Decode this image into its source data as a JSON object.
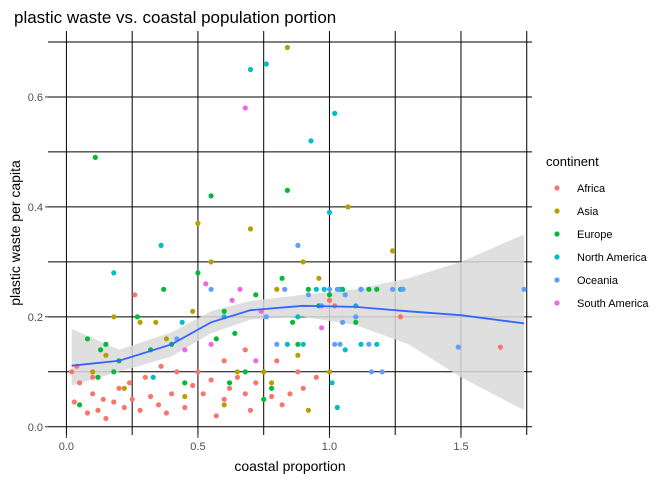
{
  "chart_data": {
    "type": "scatter",
    "title": "plastic waste vs. coastal population portion",
    "xlabel": "coastal proportion",
    "ylabel": "plastic waste per capita",
    "xlim": [
      -0.07,
      1.77
    ],
    "ylim": [
      -0.015,
      0.72
    ],
    "x_ticks": [
      0.0,
      0.5,
      1.0,
      1.5
    ],
    "x_tick_labels": [
      "0.0",
      "0.5",
      "1.0",
      "1.5"
    ],
    "y_ticks": [
      0.0,
      0.2,
      0.4,
      0.6
    ],
    "y_tick_labels": [
      "0.0",
      "0.2",
      "0.4",
      "0.6"
    ],
    "grid": true,
    "legend": {
      "title": "continent",
      "position": "right",
      "items": [
        {
          "label": "Africa",
          "color": "#F8766D"
        },
        {
          "label": "Asia",
          "color": "#B79F00"
        },
        {
          "label": "Europe",
          "color": "#00BA38"
        },
        {
          "label": "North America",
          "color": "#00BFC4"
        },
        {
          "label": "Oceania",
          "color": "#619CFF"
        },
        {
          "label": "South America",
          "color": "#F564E3"
        }
      ]
    },
    "smooth": {
      "color": "#3366FF",
      "band_color": "#D9D9D9",
      "x": [
        0.02,
        0.2,
        0.4,
        0.55,
        0.7,
        0.9,
        1.1,
        1.3,
        1.5,
        1.74
      ],
      "y": [
        0.111,
        0.12,
        0.15,
        0.19,
        0.212,
        0.22,
        0.218,
        0.21,
        0.203,
        0.188
      ],
      "lower": [
        0.075,
        0.1,
        0.128,
        0.17,
        0.195,
        0.2,
        0.185,
        0.15,
        0.09,
        0.03
      ],
      "upper": [
        0.178,
        0.14,
        0.172,
        0.21,
        0.229,
        0.24,
        0.25,
        0.27,
        0.3,
        0.35
      ]
    },
    "series": [
      {
        "name": "Africa",
        "color": "#F8766D",
        "points": [
          [
            0.02,
            0.1
          ],
          [
            0.03,
            0.045
          ],
          [
            0.05,
            0.08
          ],
          [
            0.08,
            0.025
          ],
          [
            0.1,
            0.06
          ],
          [
            0.12,
            0.03
          ],
          [
            0.15,
            0.015
          ],
          [
            0.18,
            0.045
          ],
          [
            0.2,
            0.07
          ],
          [
            0.22,
            0.035
          ],
          [
            0.25,
            0.05
          ],
          [
            0.28,
            0.03
          ],
          [
            0.3,
            0.09
          ],
          [
            0.32,
            0.055
          ],
          [
            0.35,
            0.04
          ],
          [
            0.38,
            0.025
          ],
          [
            0.4,
            0.06
          ],
          [
            0.42,
            0.1
          ],
          [
            0.45,
            0.035
          ],
          [
            0.48,
            0.075
          ],
          [
            0.5,
            0.1
          ],
          [
            0.52,
            0.06
          ],
          [
            0.55,
            0.085
          ],
          [
            0.57,
            0.02
          ],
          [
            0.6,
            0.05
          ],
          [
            0.62,
            0.07
          ],
          [
            0.65,
            0.09
          ],
          [
            0.68,
            0.06
          ],
          [
            0.7,
            0.03
          ],
          [
            0.72,
            0.08
          ],
          [
            0.75,
            0.1
          ],
          [
            0.78,
            0.055
          ],
          [
            0.8,
            0.12
          ],
          [
            0.82,
            0.04
          ],
          [
            0.85,
            0.06
          ],
          [
            0.88,
            0.1
          ],
          [
            0.9,
            0.07
          ],
          [
            0.95,
            0.09
          ],
          [
            1.0,
            0.23
          ],
          [
            1.02,
            0.22
          ],
          [
            0.26,
            0.24
          ],
          [
            1.27,
            0.2
          ],
          [
            1.65,
            0.145
          ],
          [
            0.04,
            0.11
          ],
          [
            0.1,
            0.09
          ],
          [
            0.14,
            0.05
          ],
          [
            0.24,
            0.08
          ],
          [
            0.36,
            0.11
          ],
          [
            0.6,
            0.12
          ],
          [
            0.68,
            0.14
          ]
        ]
      },
      {
        "name": "Asia",
        "color": "#B79F00",
        "points": [
          [
            0.1,
            0.1
          ],
          [
            0.15,
            0.13
          ],
          [
            0.18,
            0.2
          ],
          [
            0.22,
            0.07
          ],
          [
            0.28,
            0.19
          ],
          [
            0.38,
            0.16
          ],
          [
            0.45,
            0.055
          ],
          [
            0.48,
            0.21
          ],
          [
            0.5,
            0.37
          ],
          [
            0.55,
            0.3
          ],
          [
            0.6,
            0.04
          ],
          [
            0.65,
            0.1
          ],
          [
            0.7,
            0.36
          ],
          [
            0.75,
            0.1
          ],
          [
            0.8,
            0.25
          ],
          [
            0.84,
            0.69
          ],
          [
            0.88,
            0.13
          ],
          [
            0.9,
            0.3
          ],
          [
            0.92,
            0.03
          ],
          [
            0.96,
            0.27
          ],
          [
            1.0,
            0.1
          ],
          [
            1.07,
            0.4
          ],
          [
            1.24,
            0.32
          ],
          [
            0.34,
            0.19
          ],
          [
            0.78,
            0.08
          ]
        ]
      },
      {
        "name": "Europe",
        "color": "#00BA38",
        "points": [
          [
            0.05,
            0.04
          ],
          [
            0.08,
            0.16
          ],
          [
            0.11,
            0.49
          ],
          [
            0.13,
            0.14
          ],
          [
            0.15,
            0.15
          ],
          [
            0.18,
            0.1
          ],
          [
            0.2,
            0.12
          ],
          [
            0.27,
            0.2
          ],
          [
            0.37,
            0.25
          ],
          [
            0.4,
            0.15
          ],
          [
            0.45,
            0.08
          ],
          [
            0.5,
            0.28
          ],
          [
            0.55,
            0.42
          ],
          [
            0.57,
            0.16
          ],
          [
            0.6,
            0.21
          ],
          [
            0.64,
            0.17
          ],
          [
            0.68,
            0.1
          ],
          [
            0.72,
            0.24
          ],
          [
            0.75,
            0.05
          ],
          [
            0.78,
            0.07
          ],
          [
            0.82,
            0.27
          ],
          [
            0.84,
            0.43
          ],
          [
            0.88,
            0.15
          ],
          [
            0.92,
            0.25
          ],
          [
            0.96,
            0.22
          ],
          [
            1.0,
            0.24
          ],
          [
            1.05,
            0.25
          ],
          [
            1.1,
            0.19
          ],
          [
            1.15,
            0.25
          ],
          [
            1.18,
            0.25
          ],
          [
            0.12,
            0.09
          ],
          [
            0.32,
            0.14
          ],
          [
            0.62,
            0.08
          ],
          [
            0.86,
            0.19
          ],
          [
            1.12,
            0.25
          ]
        ]
      },
      {
        "name": "North America",
        "color": "#00BFC4",
        "points": [
          [
            0.18,
            0.28
          ],
          [
            0.33,
            0.09
          ],
          [
            0.36,
            0.33
          ],
          [
            0.44,
            0.19
          ],
          [
            0.6,
            0.2
          ],
          [
            0.7,
            0.65
          ],
          [
            0.76,
            0.66
          ],
          [
            0.84,
            0.15
          ],
          [
            0.88,
            0.2
          ],
          [
            0.93,
            0.52
          ],
          [
            0.95,
            0.25
          ],
          [
            1.0,
            0.39
          ],
          [
            1.02,
            0.57
          ],
          [
            1.03,
            0.035
          ],
          [
            1.04,
            0.25
          ],
          [
            1.06,
            0.14
          ],
          [
            1.1,
            0.22
          ],
          [
            1.18,
            0.15
          ],
          [
            0.9,
            0.15
          ],
          [
            1.27,
            0.25
          ],
          [
            1.12,
            0.15
          ],
          [
            0.98,
            0.25
          ],
          [
            1.01,
            0.08
          ]
        ]
      },
      {
        "name": "Oceania",
        "color": "#619CFF",
        "points": [
          [
            0.42,
            0.16
          ],
          [
            0.55,
            0.25
          ],
          [
            0.76,
            0.2
          ],
          [
            0.83,
            0.25
          ],
          [
            0.88,
            0.33
          ],
          [
            0.92,
            0.24
          ],
          [
            0.97,
            0.22
          ],
          [
            1.0,
            0.25
          ],
          [
            1.03,
            0.25
          ],
          [
            1.05,
            0.19
          ],
          [
            1.06,
            0.24
          ],
          [
            1.1,
            0.2
          ],
          [
            1.12,
            0.25
          ],
          [
            1.15,
            0.15
          ],
          [
            1.2,
            0.1
          ],
          [
            1.24,
            0.25
          ],
          [
            1.28,
            0.25
          ],
          [
            1.49,
            0.145
          ],
          [
            1.74,
            0.25
          ],
          [
            1.04,
            0.15
          ],
          [
            1.02,
            0.15
          ],
          [
            0.8,
            0.15
          ],
          [
            1.16,
            0.1
          ]
        ]
      },
      {
        "name": "South America",
        "color": "#F564E3",
        "points": [
          [
            0.45,
            0.14
          ],
          [
            0.53,
            0.26
          ],
          [
            0.63,
            0.23
          ],
          [
            0.68,
            0.58
          ],
          [
            0.72,
            0.12
          ],
          [
            0.74,
            0.21
          ],
          [
            0.97,
            0.18
          ],
          [
            0.55,
            0.15
          ],
          [
            0.66,
            0.25
          ]
        ]
      }
    ]
  }
}
